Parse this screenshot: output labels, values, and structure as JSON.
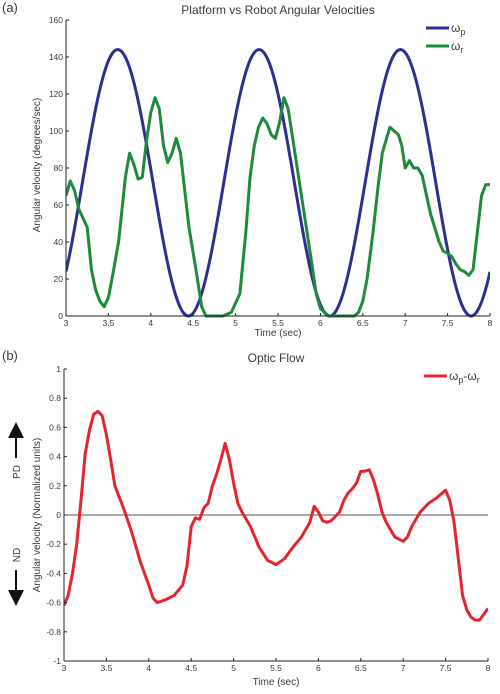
{
  "panel_labels": {
    "a": "(a)",
    "b": "(b)"
  },
  "side_annotations": {
    "pd": "PD",
    "nd": "ND"
  },
  "chart_data": [
    {
      "type": "line",
      "title": "Platform vs Robot Angular Velocities",
      "xlabel": "Time (sec)",
      "ylabel": "Angular velocity (degrees/sec)",
      "xlim": [
        3,
        8
      ],
      "ylim": [
        0,
        160
      ],
      "x_ticks": [
        3,
        3.5,
        4,
        4.5,
        5,
        5.5,
        6,
        6.5,
        7,
        7.5,
        8
      ],
      "x_tick_labels": [
        "3",
        "3.5",
        "4",
        "4.5",
        "5",
        "5.5",
        "6",
        "6.5",
        "7",
        "7.5",
        "8"
      ],
      "y_ticks": [
        0,
        20,
        40,
        60,
        80,
        100,
        120,
        140,
        160
      ],
      "y_tick_labels": [
        "0",
        "20",
        "40",
        "60",
        "80",
        "100",
        "120",
        "140",
        "160"
      ],
      "grid": false,
      "legend_position": "top-right",
      "series": [
        {
          "name": "ωp",
          "legend_main": "ω",
          "legend_sub": "p",
          "color": "#2b2f8f",
          "function": "sinusoid",
          "amplitude": 72,
          "offset": 72,
          "period": 1.667,
          "peak_time": 3.61
        },
        {
          "name": "ωr",
          "legend_main": "ω",
          "legend_sub": "r",
          "color": "#1e8a3a",
          "points": [
            [
              3,
              65
            ],
            [
              3.05,
              73
            ],
            [
              3.1,
              68
            ],
            [
              3.15,
              58
            ],
            [
              3.25,
              48
            ],
            [
              3.3,
              25
            ],
            [
              3.35,
              14
            ],
            [
              3.4,
              8
            ],
            [
              3.45,
              5
            ],
            [
              3.5,
              10
            ],
            [
              3.55,
              22
            ],
            [
              3.62,
              40
            ],
            [
              3.7,
              75
            ],
            [
              3.75,
              88
            ],
            [
              3.8,
              82
            ],
            [
              3.85,
              74
            ],
            [
              3.9,
              75
            ],
            [
              3.95,
              95
            ],
            [
              4.0,
              110
            ],
            [
              4.05,
              118
            ],
            [
              4.1,
              112
            ],
            [
              4.15,
              92
            ],
            [
              4.2,
              83
            ],
            [
              4.25,
              88
            ],
            [
              4.3,
              96
            ],
            [
              4.35,
              88
            ],
            [
              4.45,
              48
            ],
            [
              4.55,
              20
            ],
            [
              4.6,
              5
            ],
            [
              4.65,
              0
            ],
            [
              4.85,
              0
            ],
            [
              4.95,
              2
            ],
            [
              5.05,
              12
            ],
            [
              5.12,
              45
            ],
            [
              5.17,
              75
            ],
            [
              5.22,
              92
            ],
            [
              5.27,
              102
            ],
            [
              5.32,
              107
            ],
            [
              5.37,
              104
            ],
            [
              5.42,
              98
            ],
            [
              5.47,
              96
            ],
            [
              5.52,
              105
            ],
            [
              5.57,
              118
            ],
            [
              5.62,
              112
            ],
            [
              5.7,
              88
            ],
            [
              5.8,
              58
            ],
            [
              5.9,
              28
            ],
            [
              5.95,
              12
            ],
            [
              6.0,
              4
            ],
            [
              6.1,
              0
            ],
            [
              6.4,
              0
            ],
            [
              6.45,
              2
            ],
            [
              6.5,
              8
            ],
            [
              6.55,
              20
            ],
            [
              6.62,
              45
            ],
            [
              6.68,
              70
            ],
            [
              6.73,
              88
            ],
            [
              6.78,
              96
            ],
            [
              6.82,
              102
            ],
            [
              6.87,
              100
            ],
            [
              6.92,
              98
            ],
            [
              6.96,
              92
            ],
            [
              7.0,
              80
            ],
            [
              7.05,
              84
            ],
            [
              7.1,
              80
            ],
            [
              7.15,
              80
            ],
            [
              7.2,
              76
            ],
            [
              7.3,
              55
            ],
            [
              7.4,
              40
            ],
            [
              7.45,
              35
            ],
            [
              7.5,
              34
            ],
            [
              7.55,
              32
            ],
            [
              7.6,
              28
            ],
            [
              7.65,
              25
            ],
            [
              7.7,
              24
            ],
            [
              7.75,
              22
            ],
            [
              7.8,
              25
            ],
            [
              7.85,
              45
            ],
            [
              7.9,
              65
            ],
            [
              7.95,
              71
            ],
            [
              8.0,
              71
            ]
          ]
        }
      ]
    },
    {
      "type": "line",
      "title": "Optic Flow",
      "xlabel": "Time (sec)",
      "ylabel": "Angular velocity (Normalized units)",
      "xlim": [
        3,
        8
      ],
      "ylim": [
        -1,
        1
      ],
      "x_ticks": [
        3,
        3.5,
        4,
        4.5,
        5,
        5.5,
        6,
        6.5,
        7,
        7.5,
        8
      ],
      "x_tick_labels": [
        "3",
        "3.5",
        "4",
        "4.5",
        "5",
        "5.5",
        "6",
        "6.5",
        "7",
        "7.5",
        "8"
      ],
      "y_ticks": [
        -1,
        -0.8,
        -0.6,
        -0.4,
        -0.2,
        0,
        0.2,
        0.4,
        0.6,
        0.8,
        1
      ],
      "y_tick_labels": [
        "-1",
        "-0.8",
        "-0.6",
        "-0.4",
        "-0.2",
        "0",
        "0.2",
        "0.4",
        "0.6",
        "0.8",
        "1"
      ],
      "grid": false,
      "zero_line": true,
      "legend_position": "top-right",
      "series": [
        {
          "name": "ωp-ωr",
          "legend_parts": [
            "ω",
            "p",
            "-ω",
            "r"
          ],
          "color": "#e3262d",
          "points": [
            [
              3,
              -0.62
            ],
            [
              3.05,
              -0.55
            ],
            [
              3.1,
              -0.4
            ],
            [
              3.15,
              -0.2
            ],
            [
              3.2,
              0.1
            ],
            [
              3.25,
              0.42
            ],
            [
              3.3,
              0.58
            ],
            [
              3.35,
              0.69
            ],
            [
              3.4,
              0.71
            ],
            [
              3.45,
              0.68
            ],
            [
              3.5,
              0.55
            ],
            [
              3.55,
              0.38
            ],
            [
              3.6,
              0.2
            ],
            [
              3.7,
              0.05
            ],
            [
              3.8,
              -0.12
            ],
            [
              3.9,
              -0.32
            ],
            [
              4.0,
              -0.48
            ],
            [
              4.05,
              -0.57
            ],
            [
              4.1,
              -0.6
            ],
            [
              4.15,
              -0.59
            ],
            [
              4.2,
              -0.58
            ],
            [
              4.3,
              -0.55
            ],
            [
              4.4,
              -0.48
            ],
            [
              4.45,
              -0.35
            ],
            [
              4.5,
              -0.08
            ],
            [
              4.55,
              -0.02
            ],
            [
              4.6,
              -0.03
            ],
            [
              4.65,
              0.05
            ],
            [
              4.7,
              0.08
            ],
            [
              4.75,
              0.2
            ],
            [
              4.8,
              0.28
            ],
            [
              4.85,
              0.38
            ],
            [
              4.9,
              0.49
            ],
            [
              4.95,
              0.38
            ],
            [
              5.0,
              0.22
            ],
            [
              5.05,
              0.08
            ],
            [
              5.1,
              0.02
            ],
            [
              5.2,
              -0.08
            ],
            [
              5.3,
              -0.22
            ],
            [
              5.4,
              -0.31
            ],
            [
              5.5,
              -0.34
            ],
            [
              5.6,
              -0.3
            ],
            [
              5.7,
              -0.22
            ],
            [
              5.8,
              -0.15
            ],
            [
              5.9,
              -0.05
            ],
            [
              5.95,
              0.06
            ],
            [
              6.0,
              0.02
            ],
            [
              6.05,
              -0.04
            ],
            [
              6.1,
              -0.05
            ],
            [
              6.15,
              -0.04
            ],
            [
              6.2,
              -0.01
            ],
            [
              6.25,
              0.02
            ],
            [
              6.3,
              0.1
            ],
            [
              6.35,
              0.15
            ],
            [
              6.4,
              0.18
            ],
            [
              6.45,
              0.22
            ],
            [
              6.5,
              0.3
            ],
            [
              6.55,
              0.3
            ],
            [
              6.6,
              0.31
            ],
            [
              6.65,
              0.24
            ],
            [
              6.7,
              0.14
            ],
            [
              6.75,
              0.02
            ],
            [
              6.8,
              -0.05
            ],
            [
              6.9,
              -0.15
            ],
            [
              7.0,
              -0.18
            ],
            [
              7.05,
              -0.15
            ],
            [
              7.1,
              -0.08
            ],
            [
              7.2,
              0.02
            ],
            [
              7.3,
              0.08
            ],
            [
              7.4,
              0.12
            ],
            [
              7.5,
              0.17
            ],
            [
              7.55,
              0.1
            ],
            [
              7.6,
              -0.05
            ],
            [
              7.65,
              -0.3
            ],
            [
              7.7,
              -0.55
            ],
            [
              7.75,
              -0.65
            ],
            [
              7.8,
              -0.7
            ],
            [
              7.85,
              -0.72
            ],
            [
              7.9,
              -0.72
            ],
            [
              7.95,
              -0.68
            ],
            [
              8.0,
              -0.64
            ]
          ]
        }
      ]
    }
  ]
}
